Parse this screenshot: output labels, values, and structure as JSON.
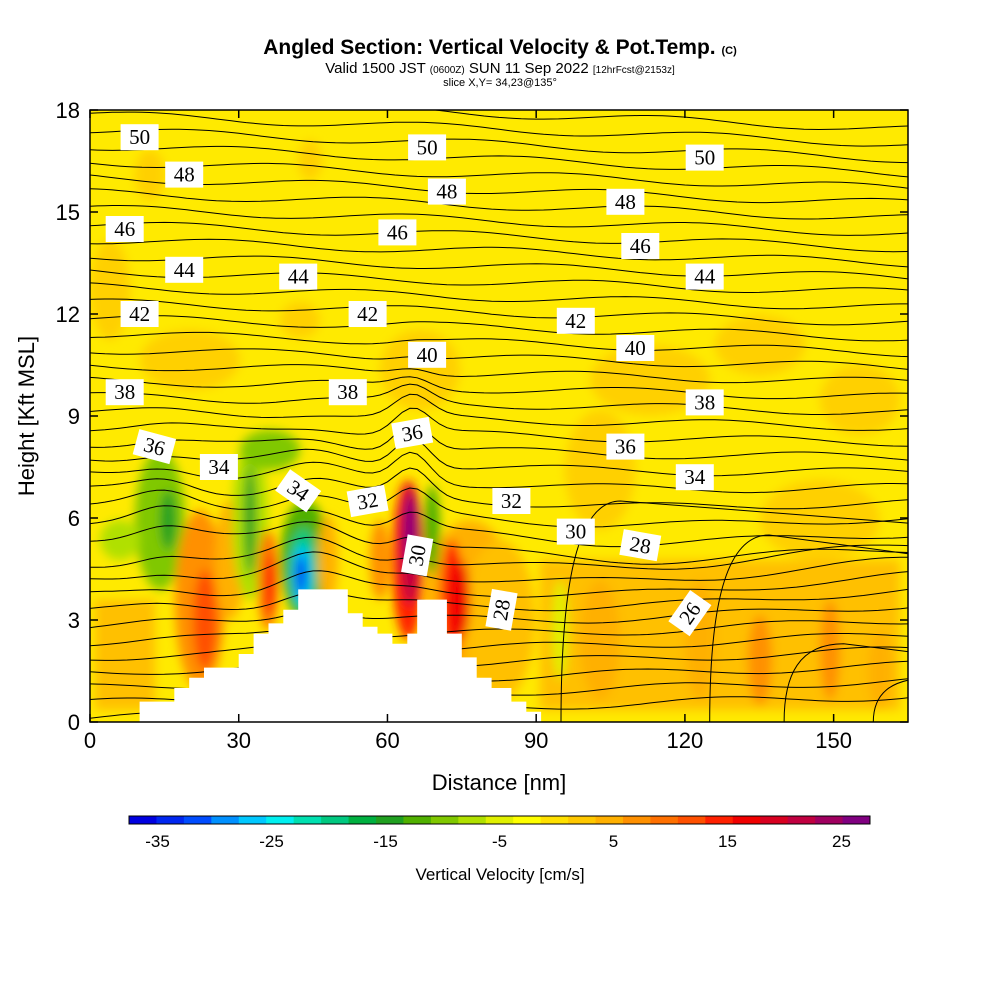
{
  "header": {
    "title_main": "Angled Section: Vertical Velocity & Pot.Temp.",
    "title_unit": "(C)",
    "valid_a": "Valid 1500 JST",
    "valid_b": "(0600Z)",
    "valid_c": "SUN 11 Sep 2022",
    "valid_d": "[12hrFcst@2153z]",
    "slice": "slice X,Y= 34,23@135°"
  },
  "chart_data": {
    "type": "heatmap",
    "xlabel": "Distance [nm]",
    "ylabel": "Height [Kft MSL]",
    "xlim": [
      0,
      165
    ],
    "ylim": [
      0,
      18
    ],
    "x_ticks": [
      "0",
      "30",
      "60",
      "90",
      "120",
      "150"
    ],
    "y_ticks": [
      "0",
      "3",
      "6",
      "9",
      "12",
      "15",
      "18"
    ],
    "background_color": "#ffea00",
    "terrain": [
      [
        10,
        0
      ],
      [
        10,
        0.6
      ],
      [
        17,
        0.6
      ],
      [
        17,
        1.0
      ],
      [
        20,
        1.0
      ],
      [
        20,
        1.3
      ],
      [
        23,
        1.3
      ],
      [
        23,
        1.6
      ],
      [
        30,
        1.6
      ],
      [
        30,
        2.0
      ],
      [
        33,
        2.0
      ],
      [
        33,
        2.6
      ],
      [
        36,
        2.6
      ],
      [
        36,
        2.9
      ],
      [
        39,
        2.9
      ],
      [
        39,
        3.3
      ],
      [
        42,
        3.3
      ],
      [
        42,
        3.9
      ],
      [
        52,
        3.9
      ],
      [
        52,
        3.2
      ],
      [
        55,
        3.2
      ],
      [
        55,
        2.8
      ],
      [
        58,
        2.8
      ],
      [
        58,
        2.6
      ],
      [
        61,
        2.6
      ],
      [
        61,
        2.3
      ],
      [
        64,
        2.3
      ],
      [
        64,
        2.6
      ],
      [
        66,
        2.6
      ],
      [
        66,
        3.6
      ],
      [
        72,
        3.6
      ],
      [
        72,
        2.6
      ],
      [
        75,
        2.6
      ],
      [
        75,
        1.9
      ],
      [
        78,
        1.9
      ],
      [
        78,
        1.3
      ],
      [
        81,
        1.3
      ],
      [
        81,
        1.0
      ],
      [
        85,
        1.0
      ],
      [
        85,
        0.6
      ],
      [
        88,
        0.6
      ],
      [
        88,
        0.3
      ],
      [
        91,
        0.3
      ],
      [
        91,
        0
      ]
    ],
    "contour_labels": [
      {
        "text": "50",
        "x": 10,
        "y": 17.2
      },
      {
        "text": "50",
        "x": 68,
        "y": 16.9
      },
      {
        "text": "50",
        "x": 124,
        "y": 16.6
      },
      {
        "text": "48",
        "x": 19,
        "y": 16.1
      },
      {
        "text": "48",
        "x": 72,
        "y": 15.6
      },
      {
        "text": "48",
        "x": 108,
        "y": 15.3
      },
      {
        "text": "46",
        "x": 7,
        "y": 14.5
      },
      {
        "text": "46",
        "x": 62,
        "y": 14.4
      },
      {
        "text": "46",
        "x": 111,
        "y": 14.0
      },
      {
        "text": "44",
        "x": 19,
        "y": 13.3
      },
      {
        "text": "44",
        "x": 42,
        "y": 13.1
      },
      {
        "text": "44",
        "x": 124,
        "y": 13.1
      },
      {
        "text": "42",
        "x": 10,
        "y": 12.0
      },
      {
        "text": "42",
        "x": 56,
        "y": 12.0
      },
      {
        "text": "42",
        "x": 98,
        "y": 11.8
      },
      {
        "text": "40",
        "x": 68,
        "y": 10.8
      },
      {
        "text": "40",
        "x": 110,
        "y": 11.0
      },
      {
        "text": "38",
        "x": 7,
        "y": 9.7
      },
      {
        "text": "38",
        "x": 52,
        "y": 9.7
      },
      {
        "text": "38",
        "x": 124,
        "y": 9.4
      },
      {
        "text": "36",
        "x": 13,
        "y": 8.1
      },
      {
        "text": "36",
        "x": 65,
        "y": 8.5
      },
      {
        "text": "36",
        "x": 108,
        "y": 8.1
      },
      {
        "text": "34",
        "x": 26,
        "y": 7.5
      },
      {
        "text": "34",
        "x": 42,
        "y": 6.8
      },
      {
        "text": "34",
        "x": 122,
        "y": 7.2
      },
      {
        "text": "32",
        "x": 56,
        "y": 6.5
      },
      {
        "text": "32",
        "x": 85,
        "y": 6.5
      },
      {
        "text": "30",
        "x": 66,
        "y": 4.9
      },
      {
        "text": "30",
        "x": 98,
        "y": 5.6
      },
      {
        "text": "28",
        "x": 83,
        "y": 3.3
      },
      {
        "text": "28",
        "x": 111,
        "y": 5.2
      },
      {
        "text": "26",
        "x": 121,
        "y": 3.2
      }
    ],
    "colorbar": {
      "title": "Vertical Velocity [cm/s]",
      "tick_labels": [
        "-35",
        "-25",
        "-15",
        "-5",
        "5",
        "15",
        "25"
      ],
      "min": -37.5,
      "max": 27.5,
      "step": 2.5,
      "colors": [
        "#0000e0",
        "#0026f0",
        "#004cff",
        "#0090ff",
        "#00c8ff",
        "#00f0f0",
        "#00e0b0",
        "#00c880",
        "#00b040",
        "#20a020",
        "#50b000",
        "#80c800",
        "#b0e000",
        "#e0f000",
        "#ffff00",
        "#ffe000",
        "#ffc800",
        "#ffb000",
        "#ff9000",
        "#ff7000",
        "#ff5000",
        "#ff2000",
        "#f00000",
        "#d80020",
        "#c00040",
        "#a00060",
        "#800080"
      ]
    }
  }
}
